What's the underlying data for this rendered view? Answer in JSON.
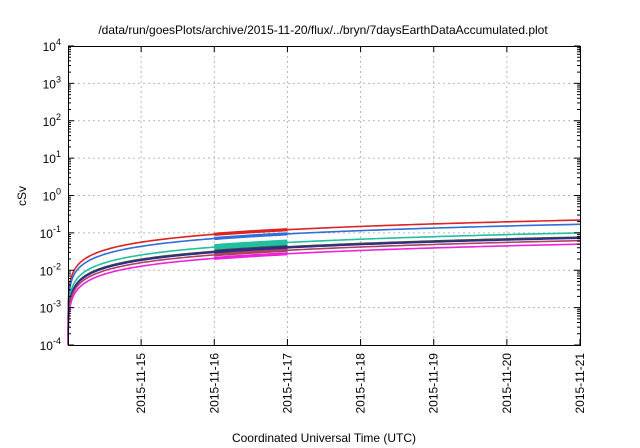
{
  "chart_data": {
    "type": "line",
    "title": "/data/run/goesPlots/archive/2015-11-20/flux/../bryn/7daysEarthDataAccumulated.plot",
    "xlabel": "Coordinated Universal Time (UTC)",
    "ylabel": "cSv",
    "x_ticks": [
      "2015-11-15",
      "2015-11-16",
      "2015-11-17",
      "2015-11-18",
      "2015-11-19",
      "2015-11-20",
      "2015-11-21"
    ],
    "xlim": [
      0,
      7
    ],
    "y_scale": "log",
    "ylim_exp": [
      -4,
      4
    ],
    "y_tick_base": "10",
    "y_tick_exponents": [
      "-4",
      "-3",
      "-2",
      "-1",
      "0",
      "1",
      "2",
      "3",
      "4"
    ],
    "grid": true,
    "series": [
      {
        "color": "#dd2222",
        "final": 0.22,
        "thick_range": [
          2.0,
          3.0
        ]
      },
      {
        "color": "#2f6fd8",
        "final": 0.17,
        "thick_range": [
          2.0,
          3.0
        ]
      },
      {
        "color": "#20c0a0",
        "final": 0.1,
        "thick_range": [
          2.0,
          3.0
        ],
        "band": 0.18
      },
      {
        "color": "#444444",
        "final": 0.077,
        "thick_range": [
          2.0,
          3.0
        ]
      },
      {
        "color": "#2a2a90",
        "final": 0.072,
        "thick_range": [
          2.0,
          3.0
        ]
      },
      {
        "color": "#b04060",
        "final": 0.062,
        "thick_range": [
          2.0,
          3.0
        ]
      },
      {
        "color": "#ee22dd",
        "final": 0.05,
        "thick_range": [
          2.0,
          3.0
        ]
      }
    ]
  }
}
